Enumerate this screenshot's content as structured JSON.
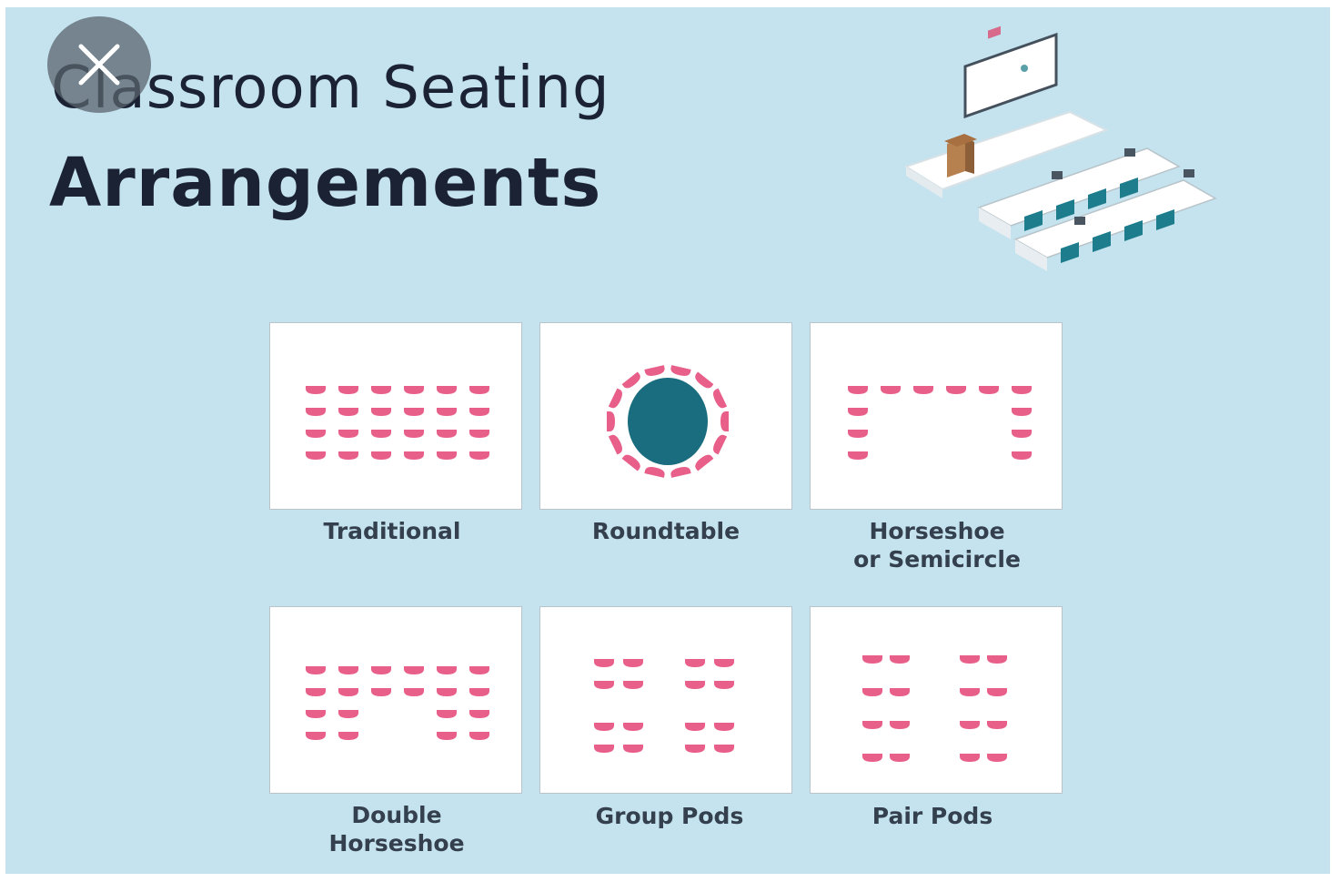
{
  "header": {
    "title_line1": "Classroom Seating",
    "title_line2": "Arrangements"
  },
  "overlay": {
    "close_icon": "close-icon"
  },
  "arrangements": [
    {
      "label": "Traditional"
    },
    {
      "label": "Roundtable"
    },
    {
      "label_line1": "Horseshoe",
      "label_line2": "or Semicircle"
    },
    {
      "label_line1": "Double",
      "label_line2": "Horseshoe"
    },
    {
      "label": "Group Pods"
    },
    {
      "label": "Pair Pods"
    }
  ],
  "colors": {
    "background": "#c5e3ef",
    "seat": "#e8608a",
    "table": "#1a6d7e",
    "title": "#1b2233"
  }
}
